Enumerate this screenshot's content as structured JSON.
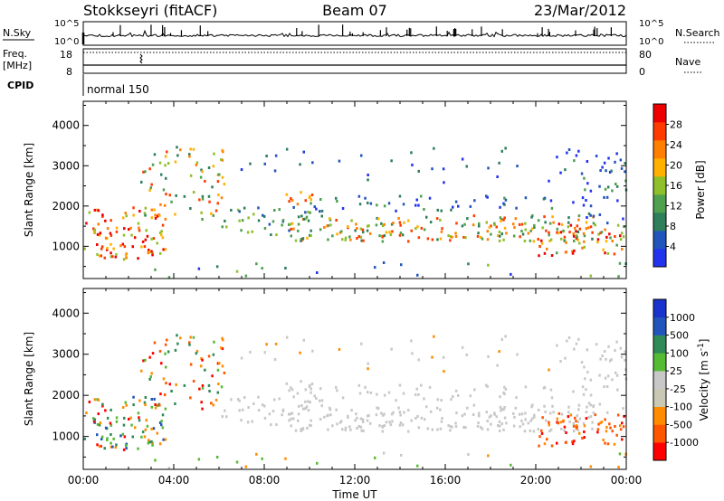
{
  "header": {
    "station": "Stokkseyri (fitACF)",
    "beam": "Beam 07",
    "date": "23/Mar/2012"
  },
  "panels": {
    "nsky": {
      "label": "N.Sky",
      "tick_top": "10^5",
      "tick_bottom": "10^0",
      "right_label": "N.Search",
      "right_tick_top": "10^5",
      "right_tick_bottom": "10^0"
    },
    "freq": {
      "label_line1": "Freq.",
      "label_line2": "[MHz]",
      "tick_top": "18",
      "tick_bottom": "8",
      "right_label": "Nave",
      "right_tick_top": "80",
      "right_tick_bottom": "0"
    },
    "cpid": {
      "label": "CPID",
      "mode": "normal 150"
    }
  },
  "colors": {
    "power": [
      "#2233ee",
      "#2255bb",
      "#2e7f5a",
      "#4fa04f",
      "#8fbf2a",
      "#ffb000",
      "#ff7f00",
      "#ff3b00",
      "#ee0000"
    ],
    "velocity": [
      "#ff0000",
      "#ff5500",
      "#ff8c00",
      "#c8c8b4",
      "#c8c8c8",
      "#55bb33",
      "#2e8b57",
      "#2255bb",
      "#1a33cc"
    ],
    "ground_scatter": "#c8c8c8"
  },
  "chart_data": [
    {
      "type": "heatmap",
      "name": "power",
      "ylabel": "Slant Range [km]",
      "xlim": [
        "00:00",
        "24:00"
      ],
      "ylim": [
        200,
        4600
      ],
      "yticks": [
        1000,
        2000,
        3000,
        4000
      ],
      "colorbar": {
        "label": "Power [dB]",
        "range": [
          0,
          32
        ],
        "ticks": [
          4,
          8,
          12,
          16,
          20,
          24,
          28
        ]
      }
    },
    {
      "type": "heatmap",
      "name": "velocity",
      "ylabel": "Slant Range [km]",
      "xlabel": "Time UT",
      "xlim": [
        "00:00",
        "24:00"
      ],
      "ylim": [
        200,
        4600
      ],
      "yticks": [
        1000,
        2000,
        3000,
        4000
      ],
      "xticks": [
        "00:00",
        "04:00",
        "08:00",
        "12:00",
        "16:00",
        "20:00",
        "00:00"
      ],
      "colorbar": {
        "label": "Velocity [m s^-1]",
        "ticks": [
          "1000",
          "500",
          "100",
          "25",
          "-25",
          "-100",
          "-500",
          "-1000"
        ]
      }
    }
  ]
}
